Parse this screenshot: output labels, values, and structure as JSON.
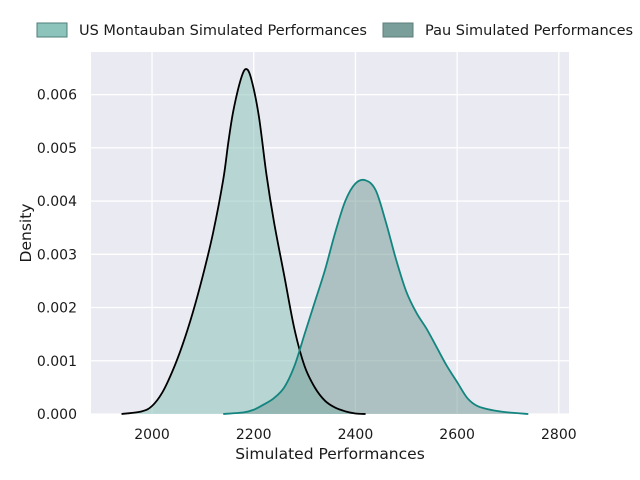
{
  "chart_data": {
    "type": "area",
    "title": "",
    "xlabel": "Simulated Performances",
    "ylabel": "Density",
    "xlim": [
      1880,
      2820
    ],
    "ylim": [
      0,
      0.0068
    ],
    "xticks": [
      2000,
      2200,
      2400,
      2600,
      2800
    ],
    "yticks": [
      0.0,
      0.001,
      0.002,
      0.003,
      0.004,
      0.005,
      0.006
    ],
    "ytick_labels": [
      "0.000",
      "0.001",
      "0.002",
      "0.003",
      "0.004",
      "0.005",
      "0.006"
    ],
    "xtick_labels": [
      "2000",
      "2200",
      "2400",
      "2600",
      "2800"
    ],
    "grid": true,
    "legend_position": "top",
    "series": [
      {
        "name": "US Montauban Simulated Performances",
        "fill_color": "#8cc3ba",
        "line_color": "#000000",
        "points": [
          [
            1940,
            0.0
          ],
          [
            1980,
            5e-05
          ],
          [
            2000,
            0.00015
          ],
          [
            2020,
            0.0004
          ],
          [
            2040,
            0.0008
          ],
          [
            2060,
            0.0013
          ],
          [
            2080,
            0.0019
          ],
          [
            2100,
            0.0026
          ],
          [
            2120,
            0.0034
          ],
          [
            2140,
            0.0044
          ],
          [
            2150,
            0.0051
          ],
          [
            2160,
            0.0057
          ],
          [
            2175,
            0.0063
          ],
          [
            2185,
            0.00648
          ],
          [
            2195,
            0.0063
          ],
          [
            2210,
            0.0056
          ],
          [
            2225,
            0.0045
          ],
          [
            2240,
            0.0036
          ],
          [
            2260,
            0.0026
          ],
          [
            2280,
            0.0016
          ],
          [
            2300,
            0.0009
          ],
          [
            2320,
            0.0005
          ],
          [
            2340,
            0.00025
          ],
          [
            2360,
            0.00012
          ],
          [
            2380,
            5e-05
          ],
          [
            2400,
            1e-05
          ],
          [
            2420,
            0.0
          ]
        ]
      },
      {
        "name": "Pau Simulated Performances",
        "fill_color": "#7a9e9a",
        "line_color": "#13857f",
        "points": [
          [
            2140,
            0.0
          ],
          [
            2180,
            3e-05
          ],
          [
            2200,
            8e-05
          ],
          [
            2220,
            0.00018
          ],
          [
            2240,
            0.0003
          ],
          [
            2260,
            0.0005
          ],
          [
            2280,
            0.0009
          ],
          [
            2300,
            0.0015
          ],
          [
            2320,
            0.0021
          ],
          [
            2340,
            0.0027
          ],
          [
            2360,
            0.0034
          ],
          [
            2380,
            0.004
          ],
          [
            2400,
            0.00433
          ],
          [
            2420,
            0.00439
          ],
          [
            2440,
            0.0042
          ],
          [
            2460,
            0.0036
          ],
          [
            2480,
            0.0029
          ],
          [
            2500,
            0.0023
          ],
          [
            2520,
            0.0019
          ],
          [
            2540,
            0.0016
          ],
          [
            2560,
            0.00125
          ],
          [
            2580,
            0.0009
          ],
          [
            2600,
            0.0006
          ],
          [
            2620,
            0.0003
          ],
          [
            2640,
            0.00015
          ],
          [
            2670,
            7e-05
          ],
          [
            2700,
            3e-05
          ],
          [
            2740,
            0.0
          ]
        ]
      }
    ]
  }
}
